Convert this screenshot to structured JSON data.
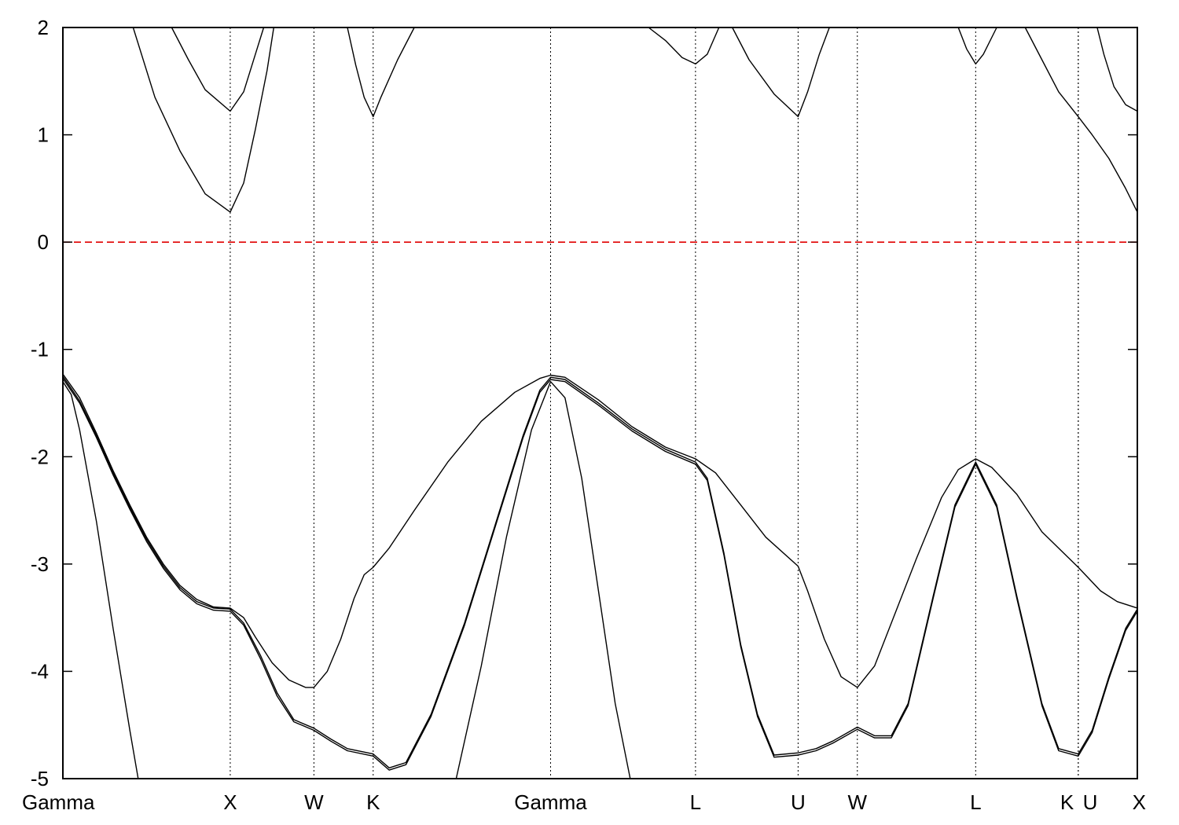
{
  "chart_data": {
    "type": "line",
    "title": "",
    "xlabel": "",
    "ylabel": "",
    "ylim": [
      -5,
      2
    ],
    "y_ticks": [
      2,
      1,
      0,
      -1,
      -2,
      -3,
      -4,
      -5
    ],
    "kpoints": [
      {
        "label": "Gamma",
        "x": 0
      },
      {
        "label": "X",
        "x": 1.0
      },
      {
        "label": "W",
        "x": 1.5
      },
      {
        "label": "K",
        "x": 1.854
      },
      {
        "label": "Gamma",
        "x": 2.914
      },
      {
        "label": "L",
        "x": 3.78
      },
      {
        "label": "U",
        "x": 4.393
      },
      {
        "label": "W",
        "x": 4.747
      },
      {
        "label": "L",
        "x": 5.454
      },
      {
        "label": "K",
        "x": 6.067
      },
      {
        "label": "U",
        "x": 6.067
      },
      {
        "label": "X",
        "x": 6.42
      }
    ],
    "x_tick_labels": [
      {
        "label": "Gamma",
        "x": 0
      },
      {
        "label": "X",
        "x": 1.0
      },
      {
        "label": "W",
        "x": 1.5
      },
      {
        "label": "K",
        "x": 1.854
      },
      {
        "label": "Gamma",
        "x": 2.914
      },
      {
        "label": "L",
        "x": 3.78
      },
      {
        "label": "U",
        "x": 4.393
      },
      {
        "label": "W",
        "x": 4.747
      },
      {
        "label": "L",
        "x": 5.454
      },
      {
        "label": "K",
        "x": 6.0
      },
      {
        "label": "U",
        "x": 6.138
      },
      {
        "label": "X",
        "x": 6.42
      }
    ],
    "fermi_level": 0,
    "fermi_color": "#e00000",
    "line_color": "#000000",
    "series": [
      {
        "points": [
          [
            0,
            -1.23
          ],
          [
            0.1,
            -1.45
          ],
          [
            0.2,
            -1.78
          ],
          [
            0.3,
            -2.13
          ],
          [
            0.4,
            -2.45
          ],
          [
            0.5,
            -2.75
          ],
          [
            0.6,
            -3.0
          ],
          [
            0.7,
            -3.2
          ],
          [
            0.8,
            -3.33
          ],
          [
            0.9,
            -3.4
          ],
          [
            1.0,
            -3.41
          ],
          [
            1.08,
            -3.5
          ],
          [
            1.15,
            -3.68
          ],
          [
            1.25,
            -3.92
          ],
          [
            1.35,
            -4.08
          ],
          [
            1.45,
            -4.15
          ],
          [
            1.5,
            -4.15
          ],
          [
            1.58,
            -4.0
          ],
          [
            1.66,
            -3.7
          ],
          [
            1.74,
            -3.32
          ],
          [
            1.8,
            -3.1
          ],
          [
            1.854,
            -3.03
          ],
          [
            1.95,
            -2.85
          ],
          [
            2.1,
            -2.5
          ],
          [
            2.3,
            -2.05
          ],
          [
            2.5,
            -1.67
          ],
          [
            2.7,
            -1.4
          ],
          [
            2.85,
            -1.27
          ],
          [
            2.914,
            -1.24
          ],
          [
            3.0,
            -1.26
          ],
          [
            3.2,
            -1.47
          ],
          [
            3.4,
            -1.72
          ],
          [
            3.6,
            -1.91
          ],
          [
            3.78,
            -2.02
          ],
          [
            3.9,
            -2.15
          ],
          [
            4.05,
            -2.45
          ],
          [
            4.2,
            -2.75
          ],
          [
            4.393,
            -3.02
          ],
          [
            4.45,
            -3.25
          ],
          [
            4.55,
            -3.7
          ],
          [
            4.65,
            -4.05
          ],
          [
            4.747,
            -4.15
          ],
          [
            4.85,
            -3.95
          ],
          [
            4.95,
            -3.55
          ],
          [
            5.1,
            -2.95
          ],
          [
            5.25,
            -2.38
          ],
          [
            5.35,
            -2.12
          ],
          [
            5.454,
            -2.02
          ],
          [
            5.55,
            -2.1
          ],
          [
            5.7,
            -2.35
          ],
          [
            5.85,
            -2.7
          ],
          [
            6.067,
            -3.03
          ],
          [
            6.2,
            -3.25
          ],
          [
            6.3,
            -3.35
          ],
          [
            6.42,
            -3.41
          ]
        ]
      },
      {
        "points": [
          [
            0,
            -1.25
          ],
          [
            0.1,
            -1.48
          ],
          [
            0.2,
            -1.8
          ],
          [
            0.3,
            -2.15
          ],
          [
            0.4,
            -2.47
          ],
          [
            0.5,
            -2.77
          ],
          [
            0.6,
            -3.02
          ],
          [
            0.7,
            -3.22
          ],
          [
            0.8,
            -3.35
          ],
          [
            0.9,
            -3.41
          ],
          [
            1.0,
            -3.42
          ],
          [
            1.08,
            -3.55
          ],
          [
            1.18,
            -3.85
          ],
          [
            1.28,
            -4.2
          ],
          [
            1.38,
            -4.45
          ],
          [
            1.5,
            -4.53
          ],
          [
            1.6,
            -4.63
          ],
          [
            1.7,
            -4.72
          ],
          [
            1.854,
            -4.77
          ],
          [
            1.95,
            -4.9
          ],
          [
            2.05,
            -4.85
          ],
          [
            2.2,
            -4.4
          ],
          [
            2.4,
            -3.55
          ],
          [
            2.6,
            -2.55
          ],
          [
            2.75,
            -1.8
          ],
          [
            2.85,
            -1.38
          ],
          [
            2.914,
            -1.26
          ],
          [
            3.0,
            -1.28
          ],
          [
            3.2,
            -1.5
          ],
          [
            3.4,
            -1.74
          ],
          [
            3.6,
            -1.93
          ],
          [
            3.78,
            -2.05
          ],
          [
            3.85,
            -2.2
          ],
          [
            3.95,
            -2.9
          ],
          [
            4.05,
            -3.75
          ],
          [
            4.15,
            -4.4
          ],
          [
            4.25,
            -4.78
          ],
          [
            4.393,
            -4.76
          ],
          [
            4.5,
            -4.72
          ],
          [
            4.6,
            -4.65
          ],
          [
            4.747,
            -4.52
          ],
          [
            4.85,
            -4.6
          ],
          [
            4.95,
            -4.6
          ],
          [
            5.05,
            -4.3
          ],
          [
            5.2,
            -3.3
          ],
          [
            5.33,
            -2.45
          ],
          [
            5.454,
            -2.05
          ],
          [
            5.58,
            -2.45
          ],
          [
            5.7,
            -3.3
          ],
          [
            5.85,
            -4.3
          ],
          [
            5.95,
            -4.72
          ],
          [
            6.067,
            -4.77
          ],
          [
            6.15,
            -4.55
          ],
          [
            6.25,
            -4.05
          ],
          [
            6.35,
            -3.6
          ],
          [
            6.42,
            -3.42
          ]
        ]
      },
      {
        "points": [
          [
            0,
            -1.27
          ],
          [
            0.1,
            -1.5
          ],
          [
            0.2,
            -1.82
          ],
          [
            0.3,
            -2.17
          ],
          [
            0.4,
            -2.49
          ],
          [
            0.5,
            -2.79
          ],
          [
            0.6,
            -3.04
          ],
          [
            0.7,
            -3.24
          ],
          [
            0.8,
            -3.37
          ],
          [
            0.9,
            -3.43
          ],
          [
            1.0,
            -3.44
          ],
          [
            1.08,
            -3.57
          ],
          [
            1.18,
            -3.88
          ],
          [
            1.28,
            -4.23
          ],
          [
            1.38,
            -4.47
          ],
          [
            1.5,
            -4.55
          ],
          [
            1.6,
            -4.65
          ],
          [
            1.7,
            -4.74
          ],
          [
            1.854,
            -4.79
          ],
          [
            1.95,
            -4.92
          ],
          [
            2.05,
            -4.87
          ],
          [
            2.2,
            -4.42
          ],
          [
            2.4,
            -3.57
          ],
          [
            2.6,
            -2.57
          ],
          [
            2.75,
            -1.82
          ],
          [
            2.85,
            -1.4
          ],
          [
            2.914,
            -1.28
          ],
          [
            3.0,
            -1.3
          ],
          [
            3.2,
            -1.52
          ],
          [
            3.4,
            -1.76
          ],
          [
            3.6,
            -1.95
          ],
          [
            3.78,
            -2.07
          ],
          [
            3.85,
            -2.22
          ],
          [
            3.95,
            -2.92
          ],
          [
            4.05,
            -3.77
          ],
          [
            4.15,
            -4.42
          ],
          [
            4.25,
            -4.8
          ],
          [
            4.393,
            -4.78
          ],
          [
            4.5,
            -4.74
          ],
          [
            4.6,
            -4.67
          ],
          [
            4.747,
            -4.54
          ],
          [
            4.85,
            -4.62
          ],
          [
            4.95,
            -4.62
          ],
          [
            5.05,
            -4.32
          ],
          [
            5.2,
            -3.32
          ],
          [
            5.33,
            -2.47
          ],
          [
            5.454,
            -2.07
          ],
          [
            5.58,
            -2.47
          ],
          [
            5.7,
            -3.32
          ],
          [
            5.85,
            -4.32
          ],
          [
            5.95,
            -4.74
          ],
          [
            6.067,
            -4.79
          ],
          [
            6.15,
            -4.57
          ],
          [
            6.25,
            -4.07
          ],
          [
            6.35,
            -3.62
          ],
          [
            6.42,
            -3.44
          ]
        ]
      },
      {
        "points": [
          [
            0,
            -1.3
          ],
          [
            0.05,
            -1.42
          ],
          [
            0.1,
            -1.75
          ],
          [
            0.2,
            -2.6
          ],
          [
            0.3,
            -3.6
          ],
          [
            0.4,
            -4.55
          ],
          [
            0.45,
            -5.0
          ]
        ]
      },
      {
        "points": [
          [
            2.35,
            -5.0
          ],
          [
            2.5,
            -3.95
          ],
          [
            2.65,
            -2.75
          ],
          [
            2.8,
            -1.75
          ],
          [
            2.914,
            -1.3
          ],
          [
            3.0,
            -1.45
          ],
          [
            3.1,
            -2.2
          ],
          [
            3.2,
            -3.25
          ],
          [
            3.3,
            -4.3
          ],
          [
            3.39,
            -5.0
          ]
        ]
      },
      {
        "points": [
          [
            0.42,
            2.0
          ],
          [
            0.55,
            1.35
          ],
          [
            0.7,
            0.85
          ],
          [
            0.85,
            0.45
          ],
          [
            1.0,
            0.28
          ],
          [
            1.08,
            0.55
          ],
          [
            1.15,
            1.05
          ],
          [
            1.22,
            1.6
          ],
          [
            1.26,
            2.0
          ]
        ]
      },
      {
        "points": [
          [
            0.65,
            2.0
          ],
          [
            0.75,
            1.7
          ],
          [
            0.85,
            1.42
          ],
          [
            1.0,
            1.22
          ],
          [
            1.08,
            1.4
          ],
          [
            1.15,
            1.75
          ],
          [
            1.2,
            2.0
          ]
        ]
      },
      {
        "points": [
          [
            1.7,
            2.0
          ],
          [
            1.75,
            1.65
          ],
          [
            1.8,
            1.35
          ],
          [
            1.854,
            1.17
          ],
          [
            1.9,
            1.35
          ],
          [
            2.0,
            1.7
          ],
          [
            2.1,
            2.0
          ]
        ]
      },
      {
        "points": [
          [
            3.5,
            2.0
          ],
          [
            3.6,
            1.88
          ],
          [
            3.7,
            1.72
          ],
          [
            3.78,
            1.66
          ],
          [
            3.85,
            1.75
          ],
          [
            3.92,
            2.0
          ]
        ]
      },
      {
        "points": [
          [
            4.0,
            2.0
          ],
          [
            4.1,
            1.7
          ],
          [
            4.25,
            1.38
          ],
          [
            4.393,
            1.17
          ],
          [
            4.45,
            1.4
          ],
          [
            4.52,
            1.75
          ],
          [
            4.58,
            2.0
          ]
        ]
      },
      {
        "points": [
          [
            5.35,
            2.0
          ],
          [
            5.4,
            1.8
          ],
          [
            5.454,
            1.66
          ],
          [
            5.5,
            1.75
          ],
          [
            5.58,
            2.0
          ]
        ]
      },
      {
        "points": [
          [
            5.75,
            2.0
          ],
          [
            5.85,
            1.7
          ],
          [
            5.95,
            1.4
          ],
          [
            6.067,
            1.17
          ],
          [
            6.15,
            1.0
          ],
          [
            6.25,
            0.78
          ],
          [
            6.35,
            0.5
          ],
          [
            6.42,
            0.28
          ]
        ]
      },
      {
        "points": [
          [
            6.18,
            2.0
          ],
          [
            6.22,
            1.75
          ],
          [
            6.28,
            1.45
          ],
          [
            6.35,
            1.28
          ],
          [
            6.42,
            1.22
          ]
        ]
      }
    ]
  }
}
